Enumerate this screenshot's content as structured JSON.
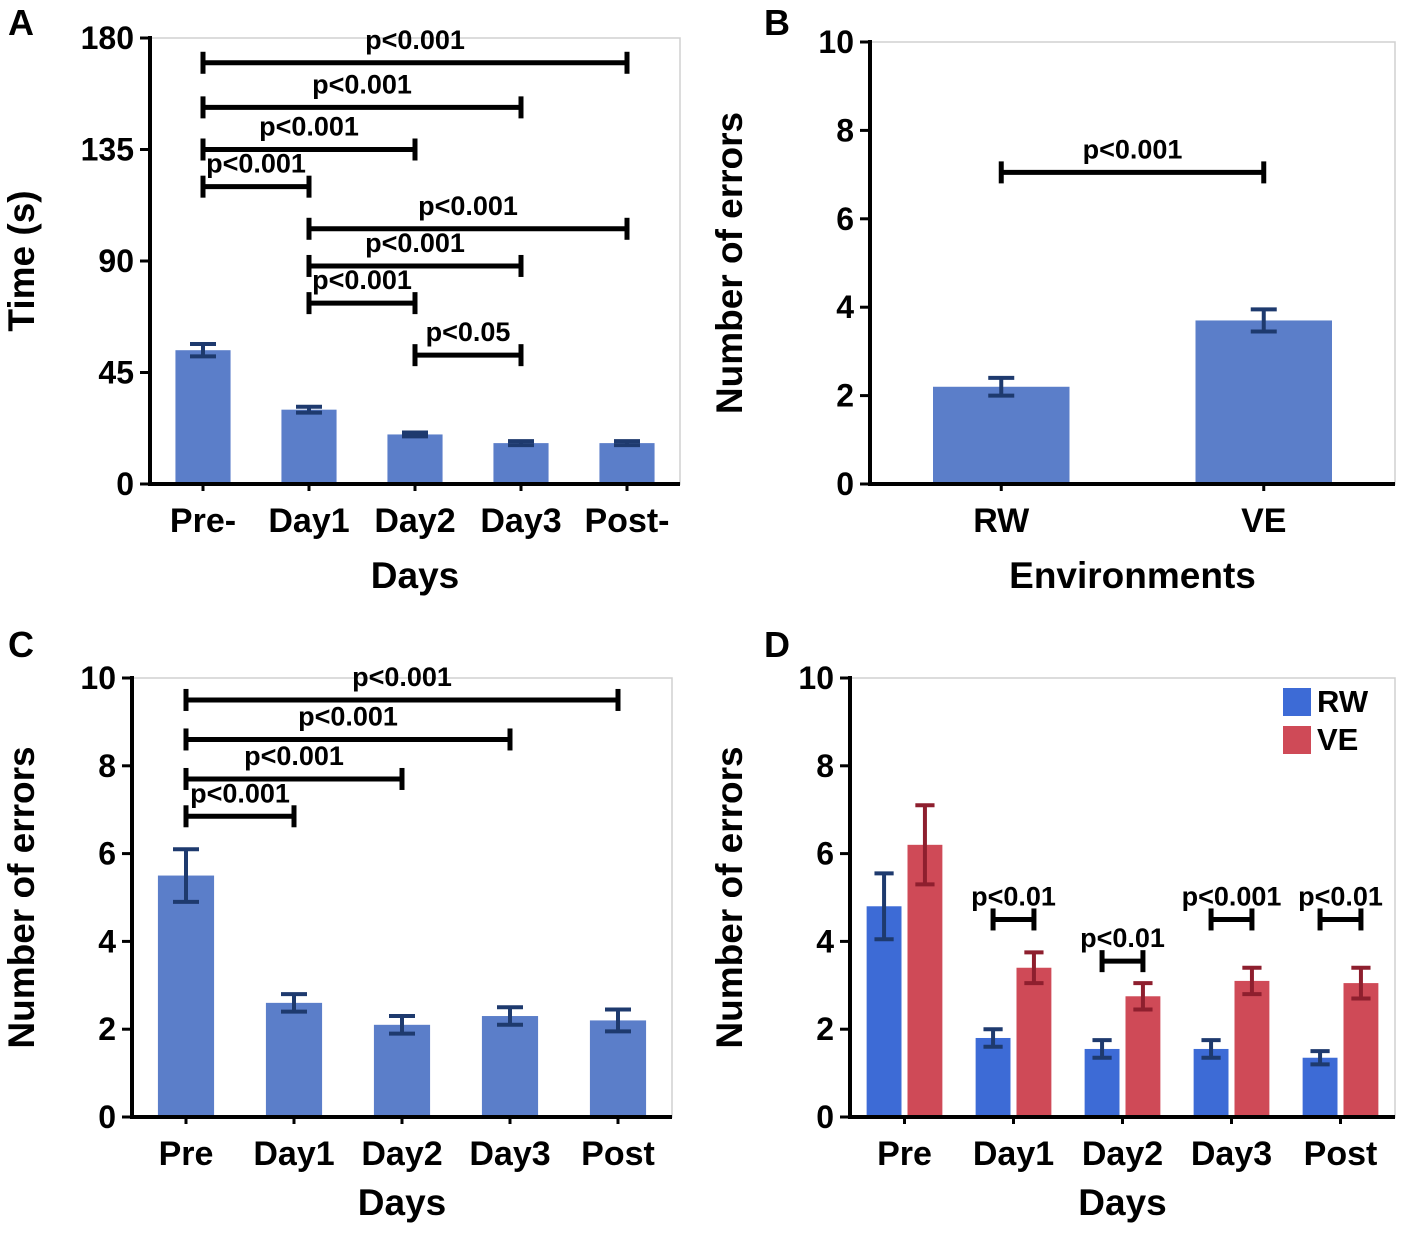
{
  "figure": {
    "panel_labels": [
      "A",
      "B",
      "C",
      "D"
    ]
  },
  "colors": {
    "bar_blue_muted": "#5b7ec9",
    "bar_blue_bright": "#3d6bd6",
    "bar_red": "#cf4a57",
    "err_navy": "#1e3a6e",
    "err_dark_red": "#8e1f2e",
    "bracket_black": "#000000",
    "frame_gray": "#d0d0d0"
  },
  "chart_data": [
    {
      "panel_label": "A",
      "type": "bar",
      "title": "",
      "xlabel": "Days",
      "ylabel": "Time (s)",
      "ylim": [
        0,
        180
      ],
      "yticks": [
        0,
        45,
        90,
        135,
        180
      ],
      "grid": false,
      "categories": [
        "Pre-",
        "Day1",
        "Day2",
        "Day3",
        "Post-"
      ],
      "series": [
        {
          "name": "Time",
          "color": "#5b7ec9",
          "err_color": "#1e3a6e",
          "values": [
            54,
            30,
            20,
            16.5,
            16.5
          ],
          "errors": [
            2.5,
            1.2,
            0.8,
            0.8,
            0.8
          ]
        }
      ],
      "brackets": [
        {
          "from": 0,
          "to": 4,
          "y": 170,
          "label": "p<0.001"
        },
        {
          "from": 0,
          "to": 3,
          "y": 152,
          "label": "p<0.001"
        },
        {
          "from": 0,
          "to": 2,
          "y": 135,
          "label": "p<0.001"
        },
        {
          "from": 0,
          "to": 1,
          "y": 120,
          "label": "p<0.001"
        },
        {
          "from": 1,
          "to": 4,
          "y": 103,
          "label": "p<0.001"
        },
        {
          "from": 1,
          "to": 3,
          "y": 88,
          "label": "p<0.001"
        },
        {
          "from": 1,
          "to": 2,
          "y": 73,
          "label": "p<0.001"
        },
        {
          "from": 2,
          "to": 3,
          "y": 52,
          "label": "p<0.05"
        }
      ]
    },
    {
      "panel_label": "B",
      "type": "bar",
      "title": "",
      "xlabel": "Environments",
      "ylabel": "Number of errors",
      "ylim": [
        0,
        10
      ],
      "yticks": [
        0,
        2,
        4,
        6,
        8,
        10
      ],
      "grid": false,
      "categories": [
        "RW",
        "VE"
      ],
      "series": [
        {
          "name": "errors",
          "color": "#5b7ec9",
          "err_color": "#1e3a6e",
          "values": [
            2.2,
            3.7
          ],
          "errors": [
            0.2,
            0.25
          ]
        }
      ],
      "brackets": [
        {
          "from": 0,
          "to": 1,
          "y": 7.05,
          "label": "p<0.001"
        }
      ]
    },
    {
      "panel_label": "C",
      "type": "bar",
      "title": "",
      "xlabel": "Days",
      "ylabel": "Number of errors",
      "ylim": [
        0,
        10
      ],
      "yticks": [
        0,
        2,
        4,
        6,
        8,
        10
      ],
      "grid": false,
      "categories": [
        "Pre",
        "Day1",
        "Day2",
        "Day3",
        "Post"
      ],
      "series": [
        {
          "name": "errors",
          "color": "#5b7ec9",
          "err_color": "#1e3a6e",
          "values": [
            5.5,
            2.6,
            2.1,
            2.3,
            2.2
          ],
          "errors": [
            0.6,
            0.2,
            0.2,
            0.2,
            0.25
          ]
        }
      ],
      "brackets": [
        {
          "from": 0,
          "to": 4,
          "y": 9.5,
          "label": "p<0.001"
        },
        {
          "from": 0,
          "to": 3,
          "y": 8.6,
          "label": "p<0.001"
        },
        {
          "from": 0,
          "to": 2,
          "y": 7.7,
          "label": "p<0.001"
        },
        {
          "from": 0,
          "to": 1,
          "y": 6.85,
          "label": "p<0.001"
        }
      ]
    },
    {
      "panel_label": "D",
      "type": "bar",
      "title": "",
      "xlabel": "Days",
      "ylabel": "Number of errors",
      "ylim": [
        0,
        10
      ],
      "yticks": [
        0,
        2,
        4,
        6,
        8,
        10
      ],
      "grid": false,
      "categories": [
        "Pre",
        "Day1",
        "Day2",
        "Day3",
        "Post"
      ],
      "series": [
        {
          "name": "RW",
          "color": "#3d6bd6",
          "err_color": "#1e3a6e",
          "values": [
            4.8,
            1.8,
            1.55,
            1.55,
            1.35
          ],
          "errors": [
            0.75,
            0.2,
            0.2,
            0.2,
            0.15
          ]
        },
        {
          "name": "VE",
          "color": "#cf4a57",
          "err_color": "#8e1f2e",
          "values": [
            6.2,
            3.4,
            2.75,
            3.1,
            3.05
          ],
          "errors": [
            0.9,
            0.35,
            0.3,
            0.3,
            0.35
          ]
        }
      ],
      "brackets": [
        {
          "cat": 1,
          "y": 4.5,
          "label": "p<0.01"
        },
        {
          "cat": 2,
          "y": 3.55,
          "label": "p<0.01"
        },
        {
          "cat": 3,
          "y": 4.5,
          "label": "p<0.001"
        },
        {
          "cat": 4,
          "y": 4.5,
          "label": "p<0.01"
        }
      ],
      "legend": {
        "position": "top-right",
        "items": [
          {
            "label": "RW",
            "color": "#3d6bd6"
          },
          {
            "label": "VE",
            "color": "#cf4a57"
          }
        ]
      }
    }
  ]
}
